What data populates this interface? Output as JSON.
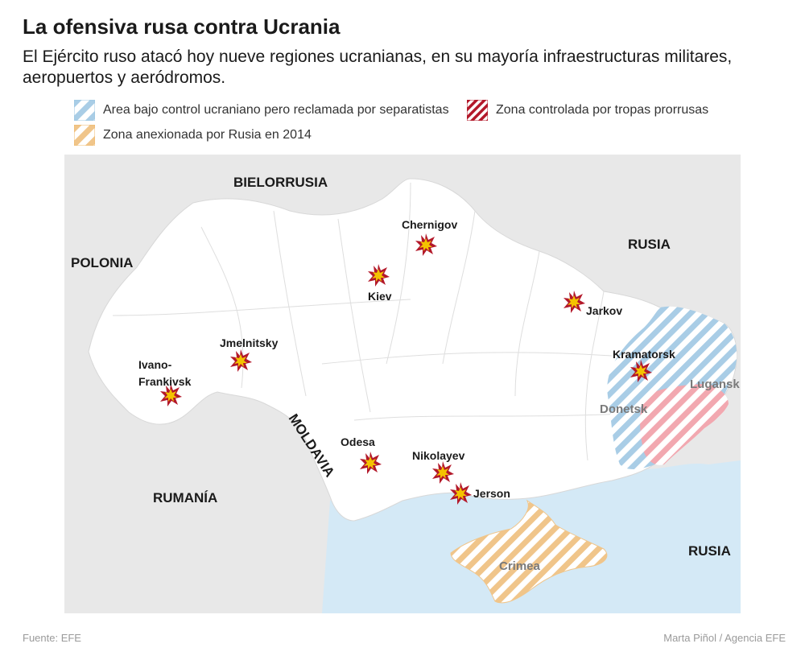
{
  "header": {
    "title": "La ofensiva rusa contra Ucrania",
    "subtitle": "El Ejército ruso atacó hoy nueve regiones ucranianas, en su mayoría infraestructuras militares, aeropuertos y aeródromos."
  },
  "legend": {
    "items": [
      {
        "label": "Area bajo control ucraniano pero reclamada por separatistas",
        "color": "#a9cde6"
      },
      {
        "label": "Zona controlada por tropas prorrusas",
        "color": "#b3182a"
      },
      {
        "label": "Zona anexionada por Rusia en 2014",
        "color": "#f0b96a"
      }
    ]
  },
  "map": {
    "countries": {
      "bielorrusia": "BIELORRUSIA",
      "polonia": "POLONIA",
      "rusia_north": "RUSIA",
      "rusia_south": "RUSIA",
      "rumania": "RUMANÍA",
      "moldavia": "MOLDAVIA"
    },
    "regions": {
      "lugansk": "Lugansk",
      "donetsk": "Donetsk",
      "crimea": "Crimea"
    },
    "attacked_cities": [
      "Chernigov",
      "Kiev",
      "Jarkov",
      "Jmelnitsky",
      "Ivano-",
      "Frankivsk",
      "Kramatorsk",
      "Odesa",
      "Nikolayev",
      "Jerson"
    ],
    "colors": {
      "sea": "#d4e9f6",
      "ukraine": "#ffffff",
      "neighbors": "#e8e8e8",
      "explosion_outer": "#b3182a",
      "explosion_inner": "#f4c300"
    }
  },
  "footer": {
    "source": "Fuente: EFE",
    "credit": "Marta Piñol / Agencia EFE"
  }
}
